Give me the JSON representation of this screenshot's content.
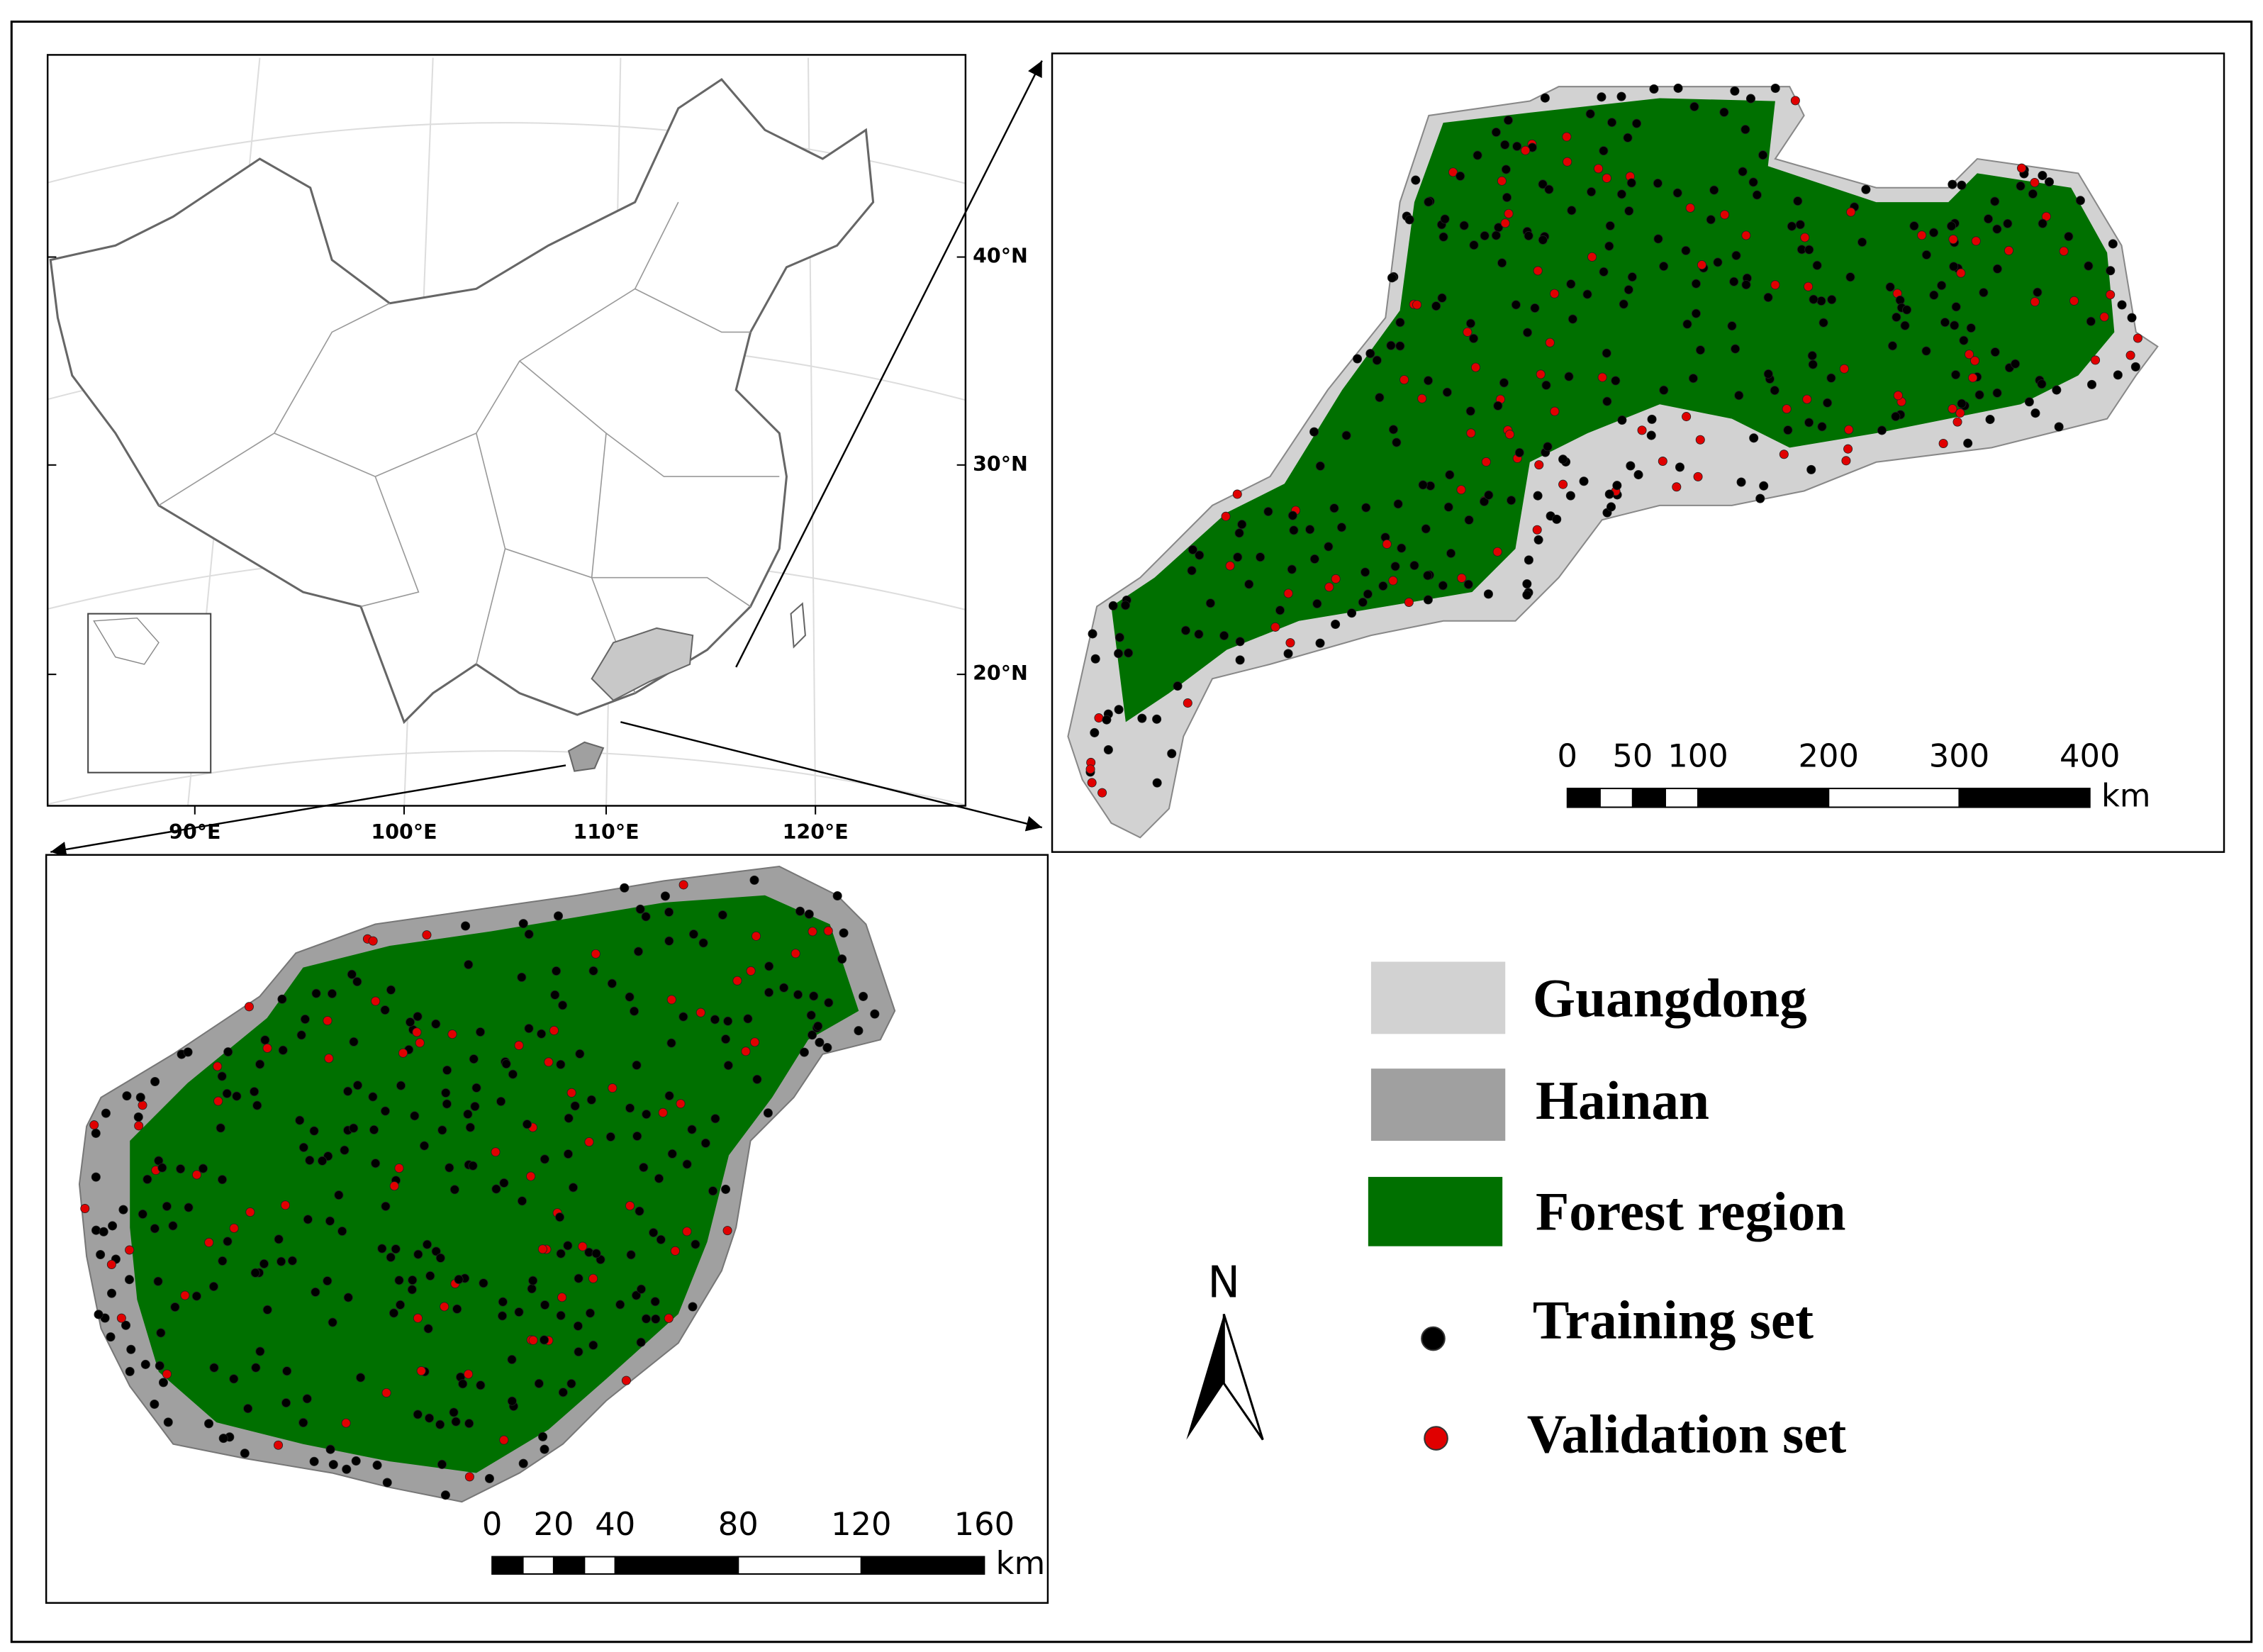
{
  "overview_map": {
    "lon_labels": [
      "90°E",
      "100°E",
      "110°E",
      "120°E"
    ],
    "lat_labels": [
      "40°N",
      "30°N",
      "20°N"
    ]
  },
  "guangdong_map": {
    "scale_ticks": [
      0,
      50,
      100,
      200,
      300,
      400
    ],
    "scale_unit": "km"
  },
  "hainan_map": {
    "scale_ticks": [
      0,
      20,
      40,
      80,
      120,
      160
    ],
    "scale_unit": "km"
  },
  "legend": {
    "items": [
      {
        "label": "Guangdong",
        "color": "#d2d2d2"
      },
      {
        "label": "Hainan",
        "color": "#a0a0a0"
      },
      {
        "label": "Forest region",
        "color": "#007000"
      },
      {
        "label": "Training set",
        "color": "#000000"
      },
      {
        "label": "Validation set",
        "color": "#e00000"
      }
    ]
  },
  "north_arrow": {
    "label": "N"
  }
}
